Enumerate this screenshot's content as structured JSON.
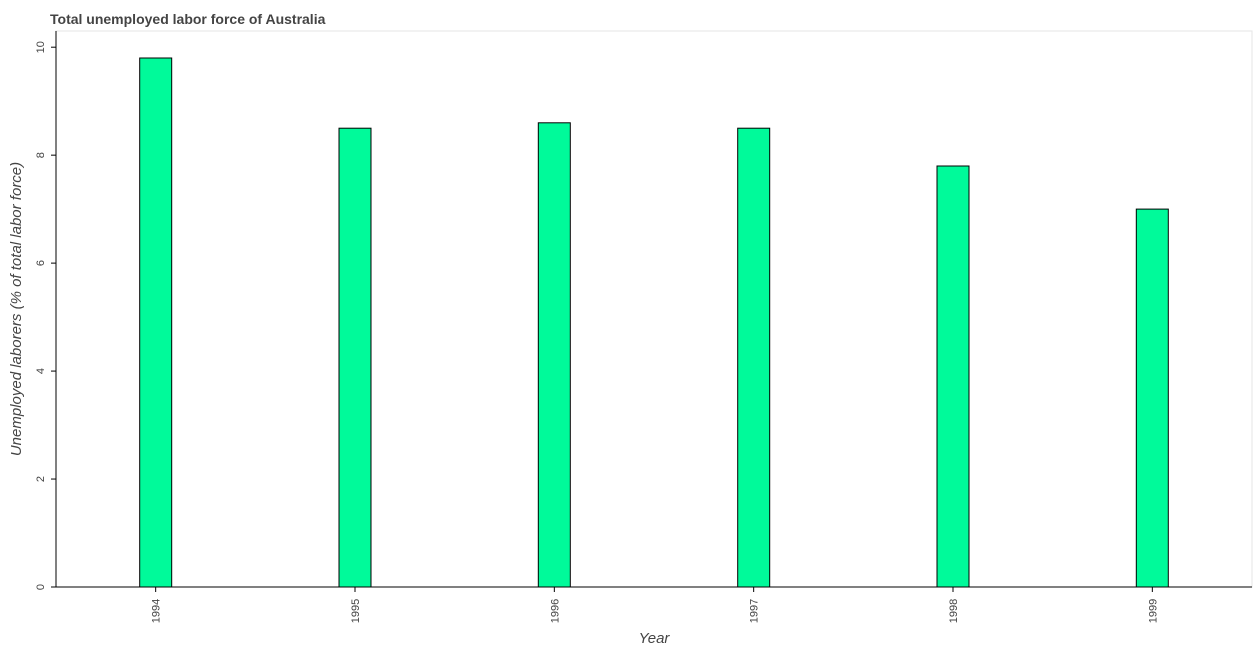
{
  "chart_data": {
    "type": "bar",
    "title": "Total unemployed labor force of Australia",
    "xlabel": "Year",
    "ylabel": "Unemployed laborers (% of total labor force)",
    "categories": [
      "1994",
      "1995",
      "1996",
      "1997",
      "1998",
      "1999"
    ],
    "values": [
      9.8,
      8.5,
      8.6,
      8.5,
      7.8,
      7.0
    ],
    "ylim": [
      0,
      10.3
    ],
    "yticks": [
      "0",
      "2",
      "4",
      "6",
      "8",
      "10"
    ],
    "grid": false,
    "legend": "none",
    "colors": {
      "bar": "#00fa9a",
      "bar_edge": "#000000"
    }
  }
}
